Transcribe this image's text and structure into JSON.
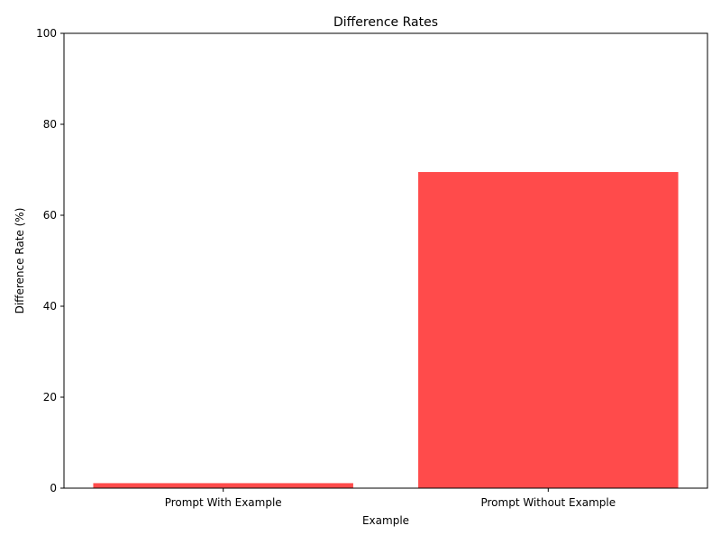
{
  "chart_data": {
    "type": "bar",
    "title": "Difference Rates",
    "xlabel": "Example",
    "ylabel": "Difference Rate (%)",
    "categories": [
      "Prompt With Example",
      "Prompt Without Example"
    ],
    "values": [
      1.1,
      69.5
    ],
    "ylim": [
      0,
      100
    ],
    "yticks": [
      0,
      20,
      40,
      60,
      80,
      100
    ],
    "bar_color": "#ff4b4b",
    "grid": false,
    "legend": "none"
  }
}
